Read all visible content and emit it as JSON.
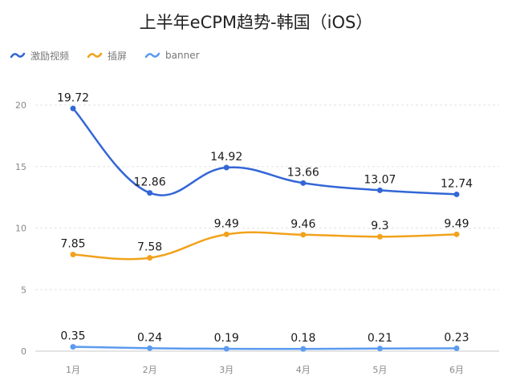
{
  "chart_data": {
    "type": "line",
    "title": "上半年eCPM趋势-韩国（iOS）",
    "categories": [
      "1月",
      "2月",
      "3月",
      "4月",
      "5月",
      "6月"
    ],
    "series": [
      {
        "name": "激励视频",
        "color": "#3366d6",
        "values": [
          19.72,
          12.86,
          14.92,
          13.66,
          13.07,
          12.74
        ],
        "labels": [
          "19.72",
          "12.86",
          "14.92",
          "13.66",
          "13.07",
          "12.74"
        ]
      },
      {
        "name": "插屏",
        "color": "#f2a21c",
        "values": [
          7.85,
          7.58,
          9.49,
          9.46,
          9.3,
          9.49
        ],
        "labels": [
          "7.85",
          "7.58",
          "9.49",
          "9.46",
          "9.3",
          "9.49"
        ]
      },
      {
        "name": "banner",
        "color": "#5b9bf0",
        "values": [
          0.35,
          0.24,
          0.19,
          0.18,
          0.21,
          0.23
        ],
        "labels": [
          "0.35",
          "0.24",
          "0.19",
          "0.18",
          "0.21",
          "0.23"
        ]
      }
    ],
    "yticks": [
      "0",
      "5",
      "10",
      "15",
      "20"
    ],
    "ylim": [
      0,
      20
    ],
    "xlabel": "",
    "ylabel": "",
    "grid": "horizontal dashed",
    "legend_position": "top-left"
  }
}
